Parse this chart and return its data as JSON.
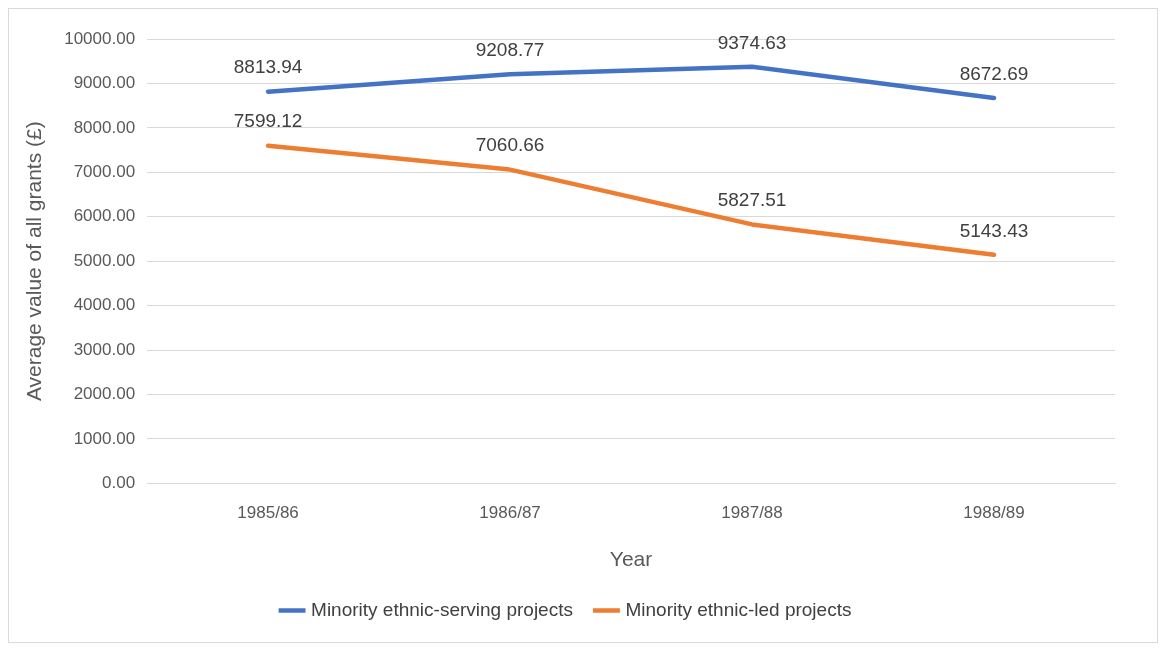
{
  "chart_data": {
    "type": "line",
    "xlabel": "Year",
    "ylabel": "Average value of all grants (£)",
    "categories": [
      "1985/86",
      "1986/87",
      "1987/88",
      "1988/89"
    ],
    "series": [
      {
        "name": "Minority ethnic-serving projects",
        "color": "#4472c4",
        "values": [
          8813.94,
          9208.77,
          9374.63,
          8672.69
        ]
      },
      {
        "name": "Minority ethnic-led projects",
        "color": "#ed7d31",
        "values": [
          7599.12,
          7060.66,
          5827.51,
          5143.43
        ]
      }
    ],
    "ylim": [
      0,
      10000
    ],
    "yticks": [
      {
        "value": 0,
        "label": "0.00"
      },
      {
        "value": 1000,
        "label": "1000.00"
      },
      {
        "value": 2000,
        "label": "2000.00"
      },
      {
        "value": 3000,
        "label": "3000.00"
      },
      {
        "value": 4000,
        "label": "4000.00"
      },
      {
        "value": 5000,
        "label": "5000.00"
      },
      {
        "value": 6000,
        "label": "6000.00"
      },
      {
        "value": 7000,
        "label": "7000.00"
      },
      {
        "value": 8000,
        "label": "8000.00"
      },
      {
        "value": 9000,
        "label": "9000.00"
      },
      {
        "value": 10000,
        "label": "10000.00"
      }
    ],
    "grid": "y",
    "legend": "bottom",
    "data_labels": true,
    "marker": "none",
    "line_style": "solid"
  }
}
